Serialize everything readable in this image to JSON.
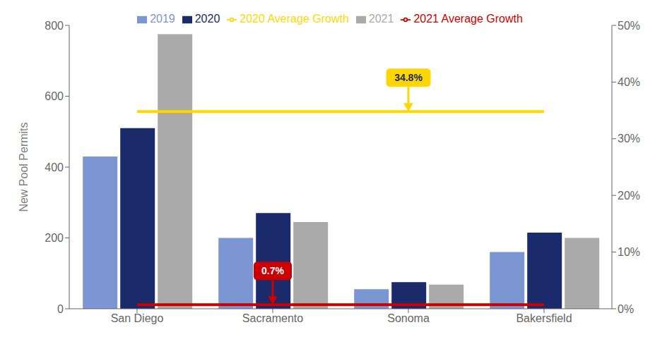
{
  "chart_data": {
    "type": "bar",
    "categories": [
      "San Diego",
      "Sacramento",
      "Sonoma",
      "Bakersfield"
    ],
    "series": [
      {
        "name": "2019",
        "color": "#7B96D2",
        "values": [
          430,
          200,
          55,
          160
        ]
      },
      {
        "name": "2020",
        "color": "#1B2A6B",
        "values": [
          510,
          270,
          75,
          215
        ]
      },
      {
        "name": "2021",
        "color": "#AAAAAA",
        "values": [
          775,
          245,
          68,
          200
        ]
      },
      {
        "name": "2020 Average Growth",
        "type": "line",
        "axis": "y2",
        "color": "#FFD700",
        "values": [
          34.8,
          34.8,
          34.8,
          34.8
        ]
      },
      {
        "name": "2021 Average Growth",
        "type": "line",
        "axis": "y2",
        "color": "#CC0000",
        "values": [
          0.7,
          0.7,
          0.7,
          0.7
        ]
      }
    ],
    "ylabel": "New Pool Permits",
    "ylim": [
      0,
      800
    ],
    "yticks": [
      0,
      200,
      400,
      600,
      800
    ],
    "y2lim": [
      0,
      50
    ],
    "y2ticks": [
      {
        "value": 0,
        "label": "0%"
      },
      {
        "value": 10,
        "label": "10%"
      },
      {
        "value": 20,
        "label": "20%"
      },
      {
        "value": 30,
        "label": "30%"
      },
      {
        "value": 40,
        "label": "40%"
      },
      {
        "value": 50,
        "label": "50%"
      }
    ],
    "annotations": [
      {
        "text": "34.8%",
        "x": "Sonoma",
        "y": 34.8,
        "axis": "y2",
        "color": "#FFD700"
      },
      {
        "text": "0.7%",
        "x": "Sacramento",
        "y": 0.7,
        "axis": "y2",
        "color": "#CC0000"
      }
    ],
    "grid": false,
    "legend": "top"
  }
}
